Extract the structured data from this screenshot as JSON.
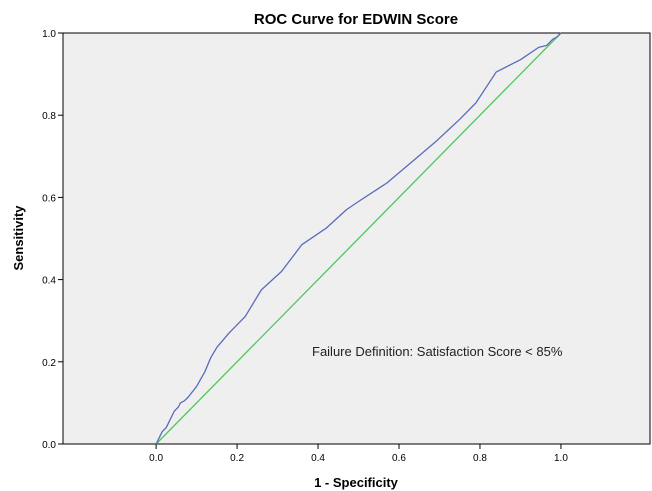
{
  "chart_data": {
    "type": "line",
    "title": "ROC Curve for EDWIN Score",
    "xlabel": "1 - Specificity",
    "ylabel": "Sensitivity",
    "xlim": [
      -0.23,
      1.22
    ],
    "ylim": [
      0.0,
      1.0
    ],
    "x_ticks": [
      "0.0",
      "0.2",
      "0.4",
      "0.6",
      "0.8",
      "1.0"
    ],
    "y_ticks": [
      "0.0",
      "0.2",
      "0.4",
      "0.6",
      "0.8",
      "1.0"
    ],
    "grid": false,
    "legend": "none",
    "annotation": "Failure Definition: Satisfaction Score < 85%",
    "colors": {
      "plot_background": "#efefef",
      "roc_curve": "#5b6bbd",
      "reference_line": "#4cc85a"
    },
    "series": [
      {
        "x": [
          0.0,
          0.005,
          0.01,
          0.015,
          0.02,
          0.025,
          0.03,
          0.035,
          0.04,
          0.045,
          0.05,
          0.055,
          0.06,
          0.07,
          0.08,
          0.1,
          0.12,
          0.135,
          0.15,
          0.18,
          0.22,
          0.26,
          0.31,
          0.36,
          0.42,
          0.47,
          0.5,
          0.57,
          0.63,
          0.69,
          0.75,
          0.79,
          0.84,
          0.9,
          0.945,
          0.965,
          0.98,
          0.99,
          1.0
        ],
        "y": [
          0.0,
          0.01,
          0.02,
          0.03,
          0.035,
          0.04,
          0.05,
          0.06,
          0.07,
          0.08,
          0.085,
          0.09,
          0.1,
          0.105,
          0.115,
          0.14,
          0.175,
          0.21,
          0.235,
          0.27,
          0.31,
          0.375,
          0.42,
          0.485,
          0.525,
          0.57,
          0.59,
          0.635,
          0.685,
          0.735,
          0.79,
          0.83,
          0.905,
          0.935,
          0.965,
          0.97,
          0.985,
          0.99,
          1.0
        ]
      },
      {
        "x": [
          0.0,
          1.0
        ],
        "y": [
          0.0,
          1.0
        ]
      }
    ]
  }
}
